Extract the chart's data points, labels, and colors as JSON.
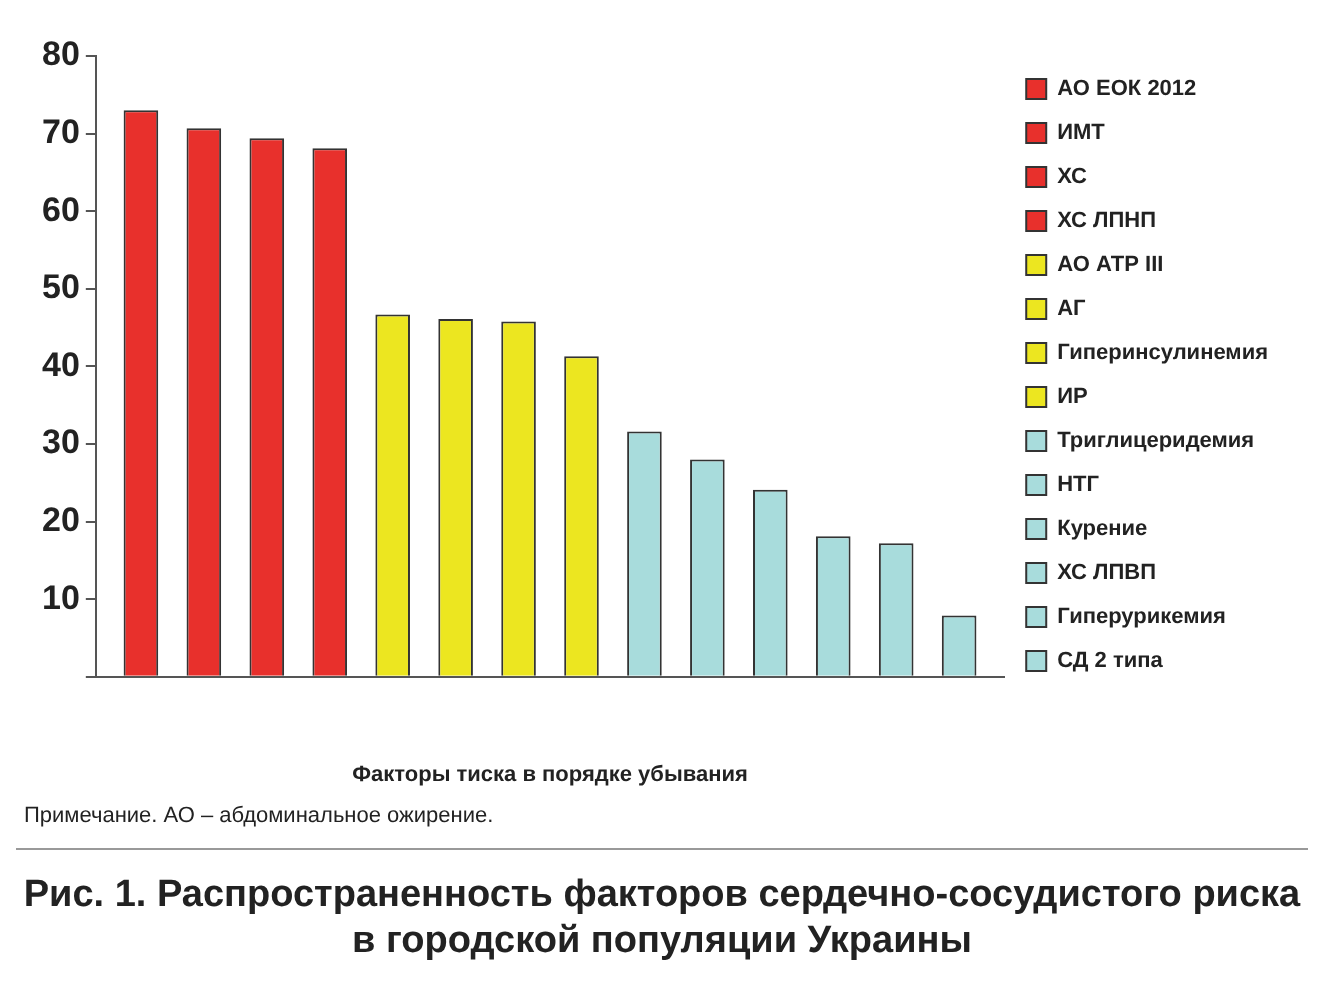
{
  "chart_data": {
    "type": "bar",
    "categories": [
      null
    ],
    "series": [
      {
        "name": "АО ЕОК 2012",
        "color": "#e8302c",
        "values": [
          73
        ]
      },
      {
        "name": "ИМТ",
        "color": "#e8302c",
        "values": [
          70.7
        ]
      },
      {
        "name": "ХС",
        "color": "#e8302c",
        "values": [
          69.4
        ]
      },
      {
        "name": "ХС ЛПНП",
        "color": "#e8302c",
        "values": [
          68.1
        ]
      },
      {
        "name": "АО АТР III",
        "color": "#ece620",
        "values": [
          46.7
        ]
      },
      {
        "name": "АГ",
        "color": "#ece620",
        "values": [
          46.1
        ]
      },
      {
        "name": "Гиперинсулинемия",
        "color": "#ece620",
        "values": [
          45.8
        ]
      },
      {
        "name": "ИР",
        "color": "#ece620",
        "values": [
          41.3
        ]
      },
      {
        "name": "Триглицеридемия",
        "color": "#a8dcdc",
        "values": [
          31.6
        ]
      },
      {
        "name": "НТГ",
        "color": "#a8dcdc",
        "values": [
          28
        ]
      },
      {
        "name": "Курение",
        "color": "#a8dcdc",
        "values": [
          24.1
        ]
      },
      {
        "name": "ХС ЛПВП",
        "color": "#a8dcdc",
        "values": [
          18.1
        ]
      },
      {
        "name": "Гиперурикемия",
        "color": "#a8dcdc",
        "values": [
          17.2
        ]
      },
      {
        "name": "СД 2 типа",
        "color": "#a8dcdc",
        "values": [
          7.9
        ]
      }
    ],
    "xlabel": "Факторы тиска в порядке убывания",
    "ylim": [
      0,
      80
    ],
    "yticks": [
      {
        "value": 0,
        "label": null
      },
      10,
      20,
      30,
      40,
      50,
      60,
      70,
      80
    ],
    "grid": false,
    "legend": "right",
    "annotations": [
      "Примечание. АО – абдоминальное ожирение."
    ],
    "title": "Рис. 1. Распространенность факторов сердечно-сосудистого риска в городской популяции Украины"
  }
}
